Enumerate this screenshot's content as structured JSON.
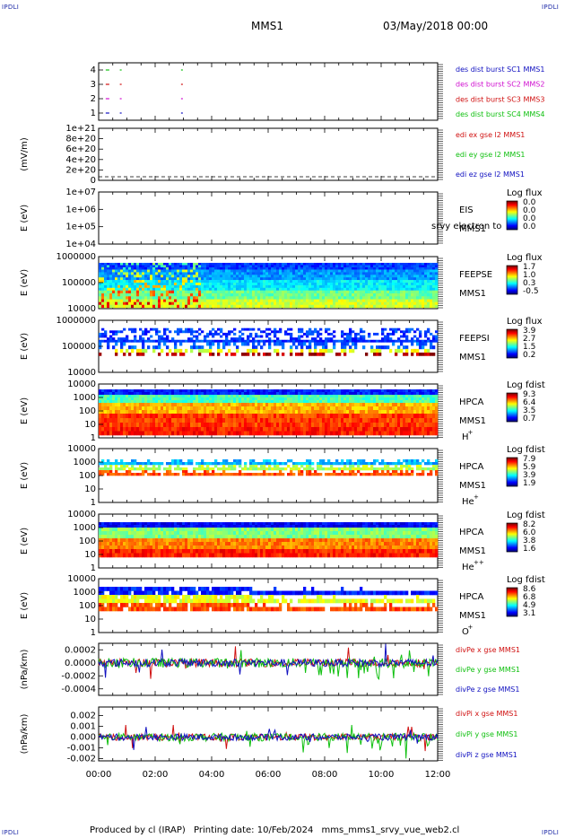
{
  "corners": {
    "tl": "IPDLI",
    "tr": "IPDLI",
    "bl": "IPDLI",
    "br": "IPDLI"
  },
  "header": {
    "spacecraft": "MMS1",
    "datetime": "03/May/2018 00:00"
  },
  "footer": {
    "produced": "Produced by cl (IRAP)",
    "printing": "Printing date: 10/Feb/2024",
    "file": "mms_mms1_srvy_vue_web2.cl"
  },
  "colors": {
    "red": "#d01010",
    "green": "#10c010",
    "blue": "#1010c0",
    "magenta": "#d010d0"
  },
  "chart_data": [
    {
      "type": "scatter",
      "ylim": [
        0.5,
        4.5
      ],
      "yticks": [
        "1",
        "2",
        "3",
        "4"
      ],
      "x": [
        "00:15",
        "00:45",
        "02:55"
      ],
      "series": [
        {
          "name": "des dist burst SC1 MMS1",
          "color": "#1010c0",
          "y": 1
        },
        {
          "name": "des dist burst SC2 MMS2",
          "color": "#d010d0",
          "y": 2
        },
        {
          "name": "des dist burst SC3 MMS3",
          "color": "#d01010",
          "y": 3
        },
        {
          "name": "des dist burst SC4 MMS4",
          "color": "#10c010",
          "y": 4
        }
      ]
    },
    {
      "type": "line",
      "ylabel": "(mV/m)",
      "ylim": [
        0,
        1e+21
      ],
      "yticks": [
        "1e+21",
        "8e+20",
        "6e+20",
        "4e+20",
        "2e+20",
        "0"
      ],
      "series": [
        {
          "name": "edi ex gse l2 MMS1",
          "color": "#d01010"
        },
        {
          "name": "edi ey gse l2 MMS1",
          "color": "#10c010"
        },
        {
          "name": "edi ez gse l2 MMS1",
          "color": "#1010c0"
        }
      ]
    },
    {
      "type": "heatmap",
      "ylabel": "E (eV)",
      "yscale": "log",
      "yticks": [
        "1e+07",
        "1e+06",
        "1e+05",
        "1e+04"
      ],
      "labels": [
        "EIS",
        "MMS1"
      ],
      "overlay": "srvy electron to",
      "cbar_title": "Log flux",
      "cbar_ticks": [
        "0.0",
        "0.0",
        "0.0",
        "0.0"
      ]
    },
    {
      "type": "heatmap",
      "ylabel": "E (eV)",
      "yscale": "log",
      "yticks": [
        "1000000",
        "100000",
        "10000"
      ],
      "labels": [
        "FEEPSE",
        "MMS1"
      ],
      "cbar_title": "Log flux",
      "cbar_ticks": [
        "1.7",
        "1.0",
        "0.3",
        "-0.5"
      ]
    },
    {
      "type": "heatmap",
      "ylabel": "E (eV)",
      "yscale": "log",
      "yticks": [
        "1000000",
        "100000",
        "10000"
      ],
      "labels": [
        "FEEPSI",
        "MMS1"
      ],
      "cbar_title": "Log flux",
      "cbar_ticks": [
        "3.9",
        "2.7",
        "1.5",
        "0.2"
      ]
    },
    {
      "type": "heatmap",
      "ylabel": "E (eV)",
      "yscale": "log",
      "yticks": [
        "10000",
        "1000",
        "100",
        "10",
        "1"
      ],
      "labels": [
        "HPCA",
        "MMS1"
      ],
      "species": "H",
      "charge": "+",
      "cbar_title": "Log fdist",
      "cbar_ticks": [
        "9.3",
        "6.4",
        "3.5",
        "0.7"
      ]
    },
    {
      "type": "heatmap",
      "ylabel": "E (eV)",
      "yscale": "log",
      "yticks": [
        "10000",
        "1000",
        "100",
        "10",
        "1"
      ],
      "labels": [
        "HPCA",
        "MMS1"
      ],
      "species": "He",
      "charge": "+",
      "cbar_title": "Log fdist",
      "cbar_ticks": [
        "7.9",
        "5.9",
        "3.9",
        "1.9"
      ]
    },
    {
      "type": "heatmap",
      "ylabel": "E (eV)",
      "yscale": "log",
      "yticks": [
        "10000",
        "1000",
        "100",
        "10",
        "1"
      ],
      "labels": [
        "HPCA",
        "MMS1"
      ],
      "species": "He",
      "charge": "++",
      "cbar_title": "Log fdist",
      "cbar_ticks": [
        "8.2",
        "6.0",
        "3.8",
        "1.6"
      ]
    },
    {
      "type": "heatmap",
      "ylabel": "E (eV)",
      "yscale": "log",
      "yticks": [
        "10000",
        "1000",
        "100",
        "10",
        "1"
      ],
      "labels": [
        "HPCA",
        "MMS1"
      ],
      "species": "O",
      "charge": "+",
      "cbar_title": "Log fdist",
      "cbar_ticks": [
        "8.6",
        "6.8",
        "4.9",
        "3.1"
      ]
    },
    {
      "type": "line",
      "ylabel": "(nPa/km)",
      "ylim": [
        -0.0005,
        0.0003
      ],
      "yticks": [
        "0.0002",
        "0.0000",
        "-0.0002",
        "-0.0004"
      ],
      "series": [
        {
          "name": "divPe x gse MMS1",
          "color": "#d01010"
        },
        {
          "name": "divPe y gse MMS1",
          "color": "#10c010"
        },
        {
          "name": "divPe z gse MMS1",
          "color": "#1010c0"
        }
      ]
    },
    {
      "type": "line",
      "ylabel": "(nPa/km)",
      "ylim": [
        -0.0022,
        0.0028
      ],
      "yticks": [
        "0.002",
        "0.001",
        "0.000",
        "-0.001",
        "-0.002"
      ],
      "series": [
        {
          "name": "divPi x gse MMS1",
          "color": "#d01010"
        },
        {
          "name": "divPi y gse MMS1",
          "color": "#10c010"
        },
        {
          "name": "divPi z gse MMS1",
          "color": "#1010c0"
        }
      ]
    }
  ],
  "xaxis": {
    "ticks": [
      "00:00",
      "02:00",
      "04:00",
      "06:00",
      "08:00",
      "10:00",
      "12:00"
    ]
  }
}
